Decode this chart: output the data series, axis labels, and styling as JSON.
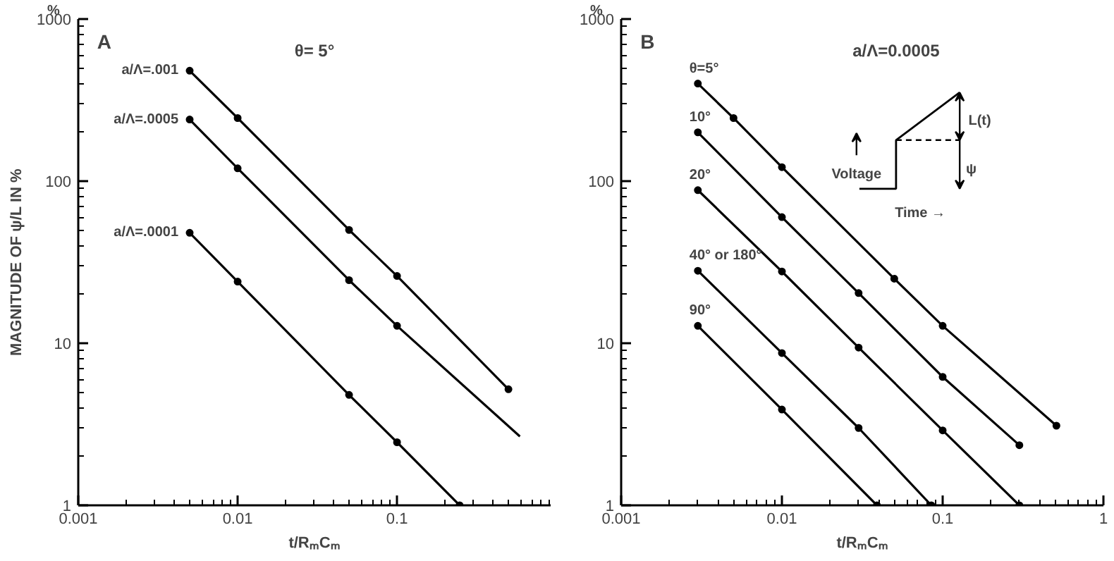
{
  "chart_data": [
    {
      "type": "line",
      "title": "A",
      "xlabel": "t/RₘCₘ",
      "ylabel": "MAGNITUDE OF ψ/L IN %",
      "annotations": [
        "%",
        "θ= 5°"
      ],
      "log": "xy",
      "xlim": [
        0.001,
        0.92
      ],
      "ylim": [
        1,
        1000
      ],
      "xticks": [
        0.001,
        0.01,
        0.1
      ],
      "yticks": [
        1,
        10,
        100,
        1000
      ],
      "grid": false,
      "marker": "circle",
      "series": [
        {
          "name": "a/Λ=.001",
          "color": "#000000",
          "x": [
            0.005,
            0.01,
            0.05,
            0.1,
            0.5
          ],
          "values": [
            480,
            245,
            50,
            26,
            5.2
          ]
        },
        {
          "name": "a/Λ=.0005",
          "color": "#000000",
          "x": [
            0.005,
            0.01,
            0.05,
            0.1
          ],
          "values": [
            240,
            120,
            24.5,
            12.8
          ]
        },
        {
          "color": "#000000",
          "marker": "none",
          "x": [
            0.1,
            0.59
          ],
          "values": [
            12.8,
            2.66
          ]
        },
        {
          "name": "a/Λ=.0001",
          "color": "#000000",
          "x": [
            0.005,
            0.01,
            0.05,
            0.1,
            0.247
          ],
          "values": [
            48,
            24,
            4.8,
            2.45,
            1
          ]
        }
      ]
    },
    {
      "type": "line",
      "title": "B",
      "xlabel": "t/RₘCₘ",
      "annotations": [
        "%",
        "a/Λ=0.0005",
        "Voltage",
        "Time →",
        "L(t)",
        "ψ"
      ],
      "log": "xy",
      "xlim": [
        0.001,
        1
      ],
      "ylim": [
        1,
        1000
      ],
      "xticks": [
        0.001,
        0.01,
        0.1,
        1
      ],
      "yticks": [
        1,
        10,
        100,
        1000
      ],
      "grid": false,
      "marker": "circle",
      "series": [
        {
          "name": "θ=5°",
          "color": "#000000",
          "x": [
            0.003,
            0.005,
            0.01,
            0.05,
            0.1,
            0.51
          ],
          "values": [
            400,
            245,
            122,
            25,
            12.8,
            3.1
          ]
        },
        {
          "name": "10°",
          "color": "#000000",
          "x": [
            0.003,
            0.01,
            0.03,
            0.1,
            0.3
          ],
          "values": [
            200,
            60,
            20.4,
            6.2,
            2.35
          ]
        },
        {
          "name": "20°",
          "color": "#000000",
          "x": [
            0.003,
            0.01,
            0.03,
            0.1,
            0.3
          ],
          "values": [
            88,
            27.7,
            9.4,
            2.9,
            1
          ]
        },
        {
          "name": "40° or 180°",
          "color": "#000000",
          "x": [
            0.003,
            0.01,
            0.03,
            0.085
          ],
          "values": [
            28,
            8.7,
            3.0,
            1
          ]
        },
        {
          "name": "90°",
          "color": "#000000",
          "x": [
            0.003,
            0.01,
            0.039
          ],
          "values": [
            12.8,
            3.9,
            1
          ]
        }
      ]
    }
  ]
}
